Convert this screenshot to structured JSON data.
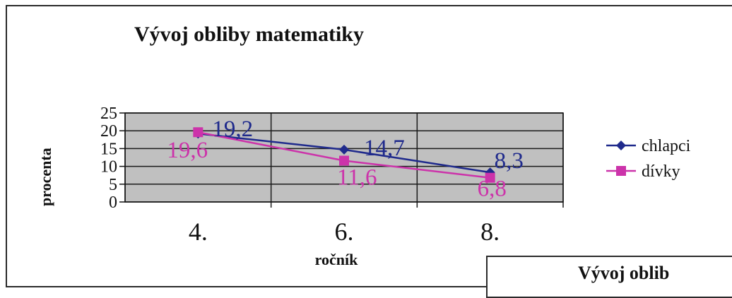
{
  "chart_data": {
    "type": "line",
    "title": "Vývoj obliby matematiky",
    "xlabel": "ročník",
    "ylabel": "procenta",
    "categories": [
      "4.",
      "6.",
      "8."
    ],
    "ylim": [
      0,
      25
    ],
    "yticks": [
      "0",
      "5",
      "10",
      "15",
      "20",
      "25"
    ],
    "grid": true,
    "legend": "right",
    "series": [
      {
        "name": "chlapci",
        "values": [
          19.2,
          14.7,
          8.3
        ],
        "labels": [
          "19,2",
          "14,7",
          "8,3"
        ],
        "color": "#1f2a8c",
        "marker": "diamond"
      },
      {
        "name": "dívky",
        "values": [
          19.6,
          11.6,
          6.8
        ],
        "labels": [
          "19,6",
          "11,6",
          "6,8"
        ],
        "color": "#cc33aa",
        "marker": "square"
      }
    ]
  },
  "second_chart": {
    "title_fragment": "Vývoj oblib"
  },
  "colors": {
    "plot_background": "#c0c0c0",
    "gridline": "#1a1a1a"
  }
}
